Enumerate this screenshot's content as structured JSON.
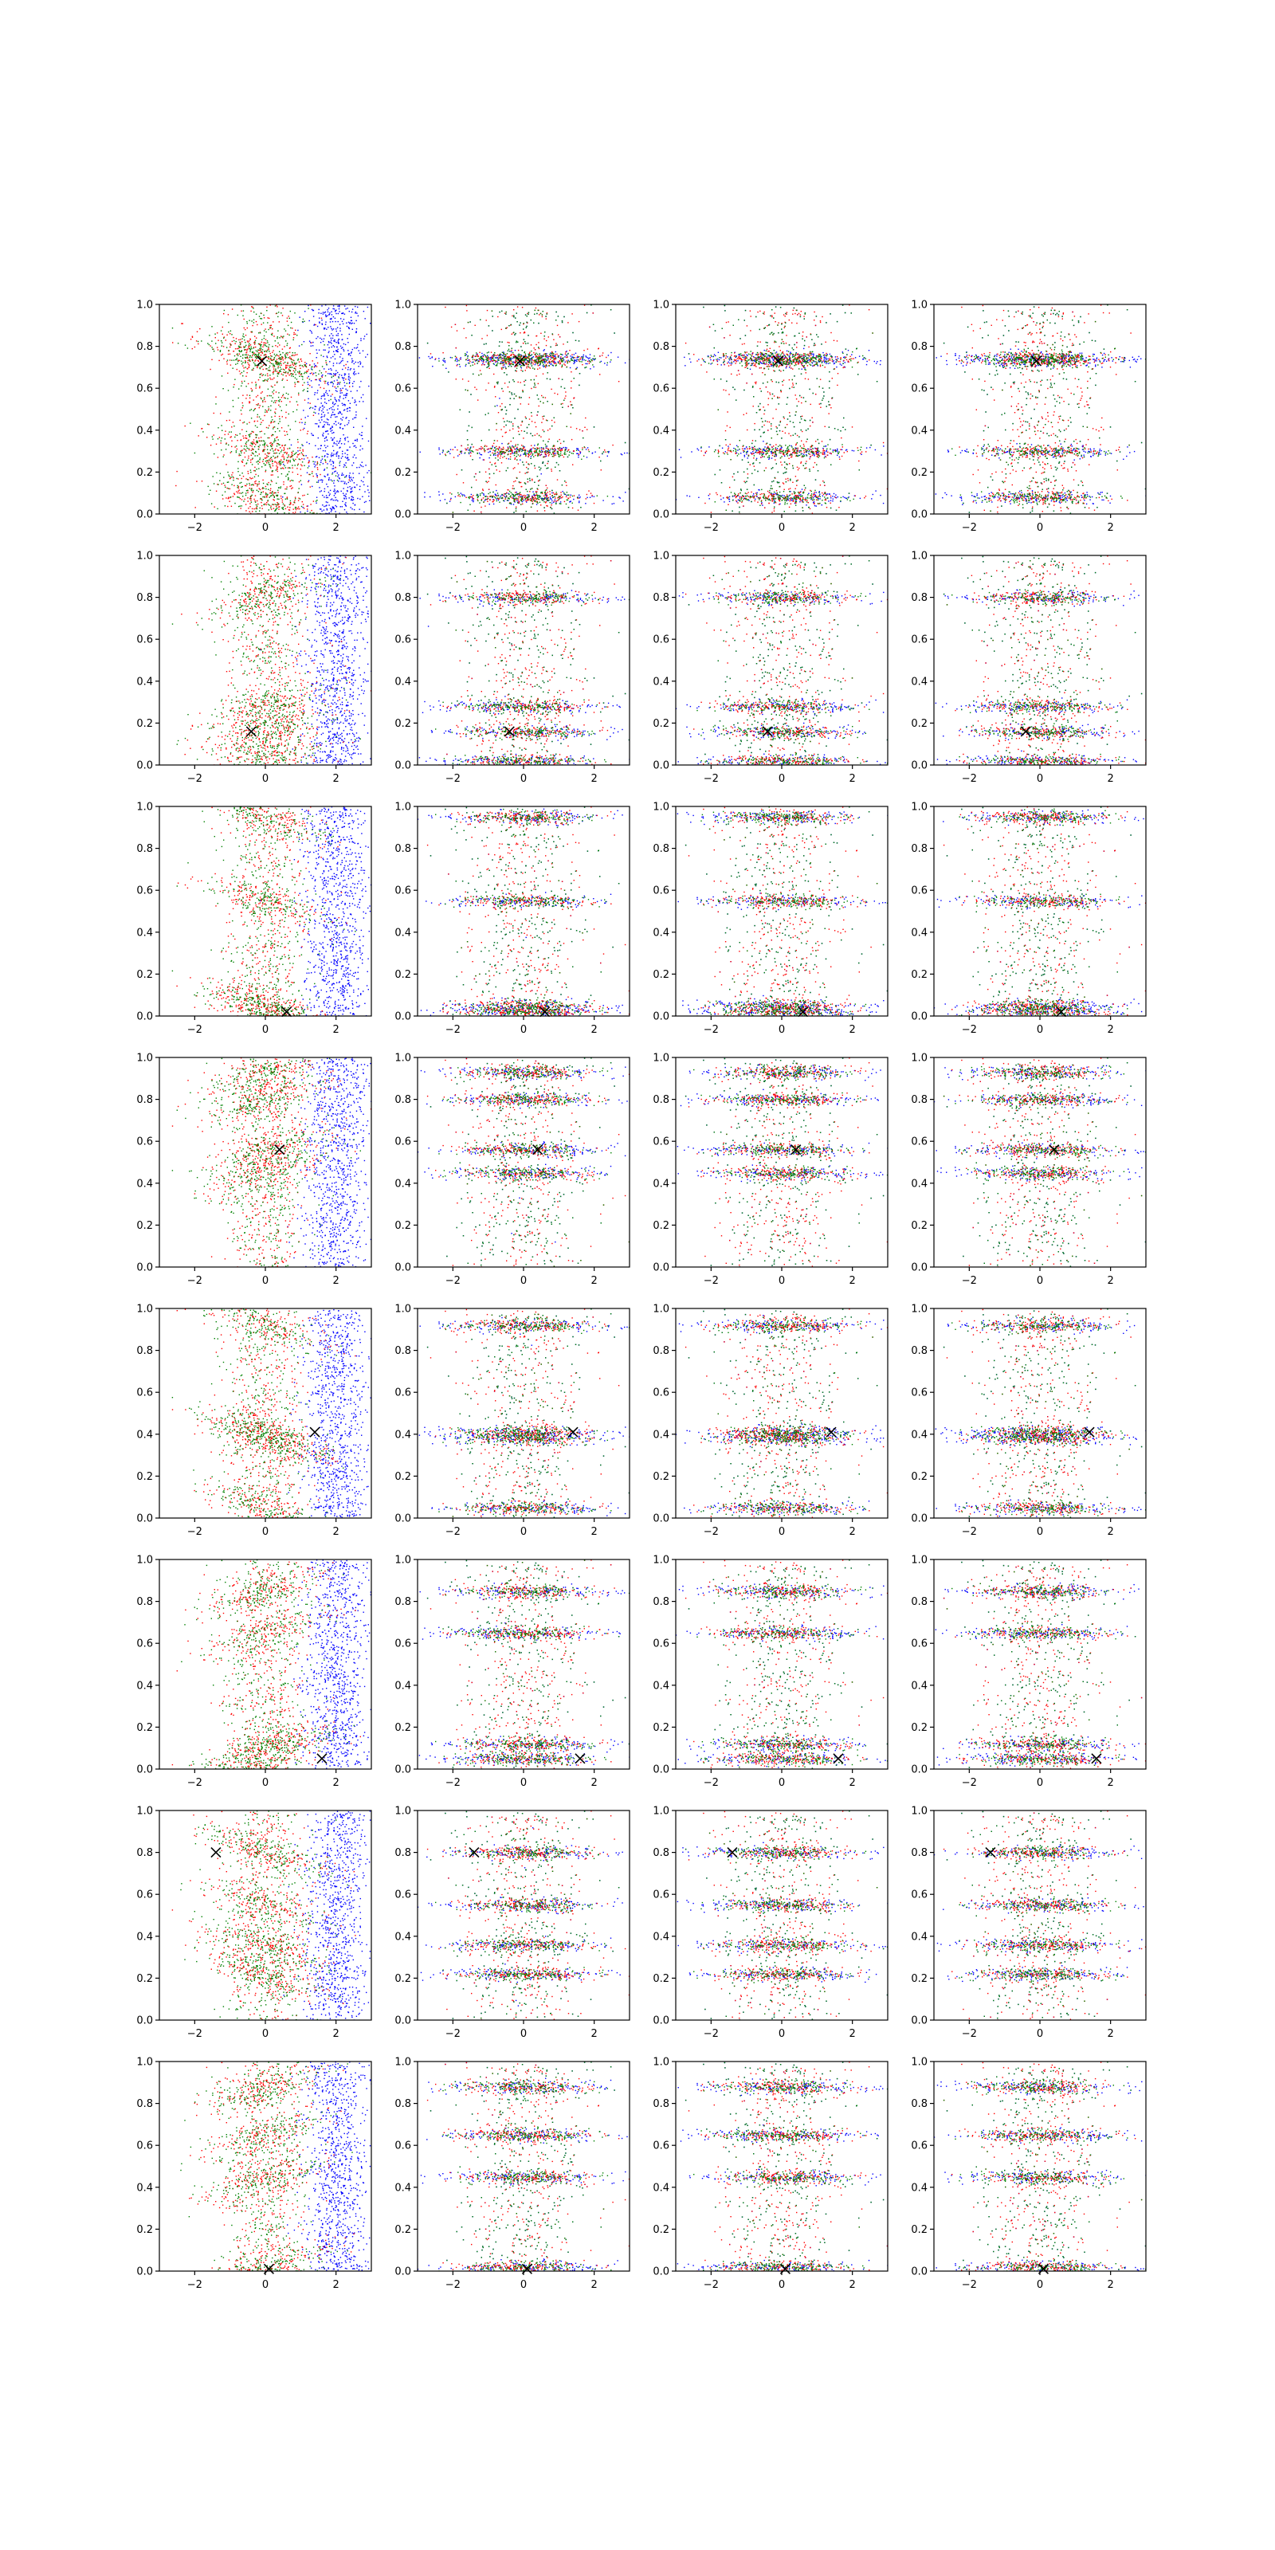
{
  "figure": {
    "description_rows": 8,
    "description_cols": 4
  },
  "colors": {
    "blue": "#0000ff",
    "red": "#ff0000",
    "green": "#008000",
    "axis": "#000000",
    "marker": "#000000"
  },
  "chart_data": {
    "type": "scatter",
    "rows": 8,
    "cols": 4,
    "xlim": [
      -3,
      3
    ],
    "ylim": [
      0,
      1
    ],
    "xticks": [
      -2,
      0,
      2
    ],
    "yticks": [
      0.0,
      0.2,
      0.4,
      0.6,
      0.8,
      1.0
    ],
    "xtick_labels": [
      "−2",
      "0",
      "2"
    ],
    "ytick_labels": [
      "0.0",
      "0.2",
      "0.4",
      "0.6",
      "0.8",
      "1.0"
    ],
    "series": [
      {
        "name": "blue",
        "color": "#0000ff"
      },
      {
        "name": "red",
        "color": "#ff0000"
      },
      {
        "name": "green",
        "color": "#008000"
      }
    ],
    "marker": {
      "symbol": "x",
      "color": "#000000"
    },
    "row_markers": [
      {
        "x": -0.1,
        "y": 0.73
      },
      {
        "x": -0.4,
        "y": 0.16
      },
      {
        "x": 0.6,
        "y": 0.02
      },
      {
        "x": 0.4,
        "y": 0.56
      },
      {
        "x": 1.4,
        "y": 0.41
      },
      {
        "x": 1.6,
        "y": 0.05
      },
      {
        "x": -1.4,
        "y": 0.8
      },
      {
        "x": 0.1,
        "y": 0.01
      }
    ],
    "row_bands": [
      [
        0.08,
        0.3,
        0.73,
        0.75
      ],
      [
        0.02,
        0.16,
        0.28,
        0.8
      ],
      [
        0.02,
        0.05,
        0.55,
        0.95
      ],
      [
        0.45,
        0.56,
        0.93,
        0.8
      ],
      [
        0.05,
        0.41,
        0.92,
        0.38
      ],
      [
        0.05,
        0.12,
        0.65,
        0.85
      ],
      [
        0.8,
        0.36,
        0.55,
        0.22
      ],
      [
        0.02,
        0.45,
        0.65,
        0.88
      ]
    ]
  }
}
